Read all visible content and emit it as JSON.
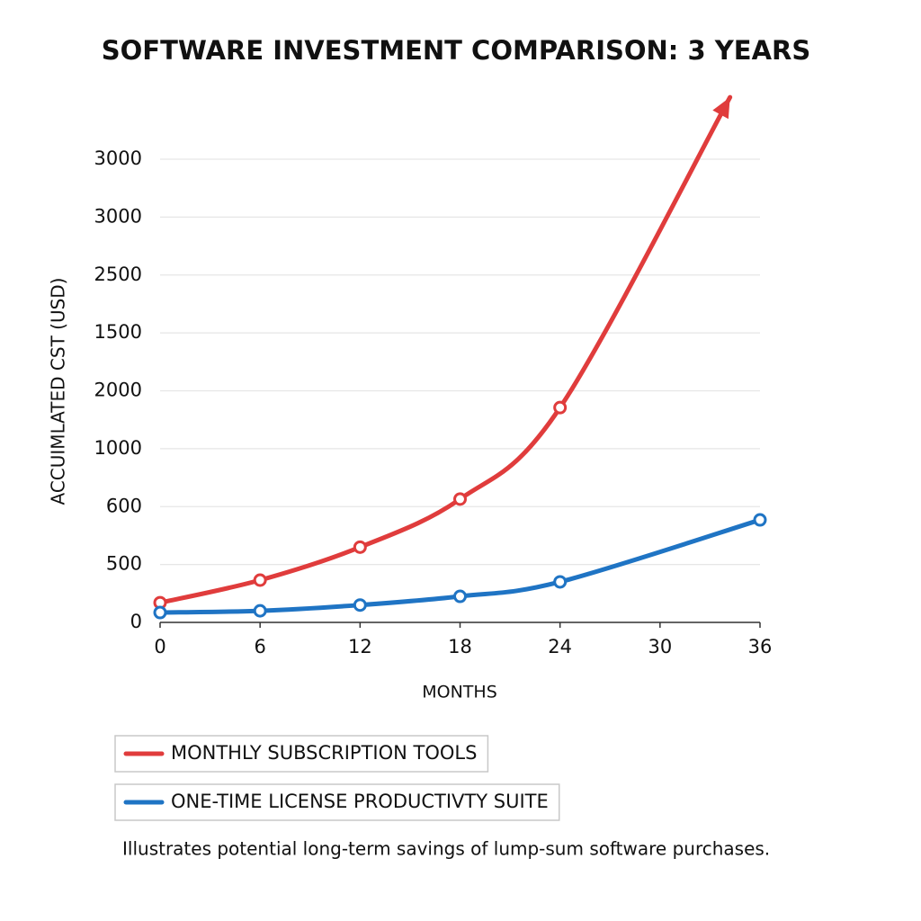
{
  "chart_data": {
    "type": "line",
    "title": "SOFTWARE INVESTMENT COMPARISON: 3 YEARS",
    "x_label": "MONTHS",
    "y_label": "ACCUIMLATED CST (USD)",
    "note": "Illustrates potential long-term savings of lump-sum software purchases.",
    "xlim": [
      0,
      36
    ],
    "xticks": [
      0,
      6,
      12,
      18,
      24,
      30,
      36
    ],
    "ylim": [
      0,
      8
    ],
    "yticks": [
      {
        "value": 0,
        "label": "0"
      },
      {
        "value": 1,
        "label": "500"
      },
      {
        "value": 2,
        "label": "600"
      },
      {
        "value": 3,
        "label": "1000"
      },
      {
        "value": 4,
        "label": "2000"
      },
      {
        "value": 5,
        "label": "1500"
      },
      {
        "value": 6,
        "label": "2500"
      },
      {
        "value": 7,
        "label": "3000"
      },
      {
        "value": 8,
        "label": "3000"
      }
    ],
    "grid": true,
    "series": [
      {
        "name": "MONTHLY SUBSCRIPTION TOOLS",
        "color": "#e03c3c",
        "x": [
          0,
          6,
          12,
          18,
          24,
          34.2
        ],
        "values": [
          0.34,
          0.73,
          1.3,
          2.13,
          3.71,
          9.07
        ],
        "arrow": true
      },
      {
        "name": "ONE-TIME LICENSE PRODUCTIVTY SUITE",
        "color": "#1f74c4",
        "x": [
          0,
          6,
          12,
          18,
          24,
          36
        ],
        "values": [
          0.17,
          0.2,
          0.3,
          0.45,
          0.7,
          1.77
        ],
        "arrow": false
      }
    ]
  }
}
